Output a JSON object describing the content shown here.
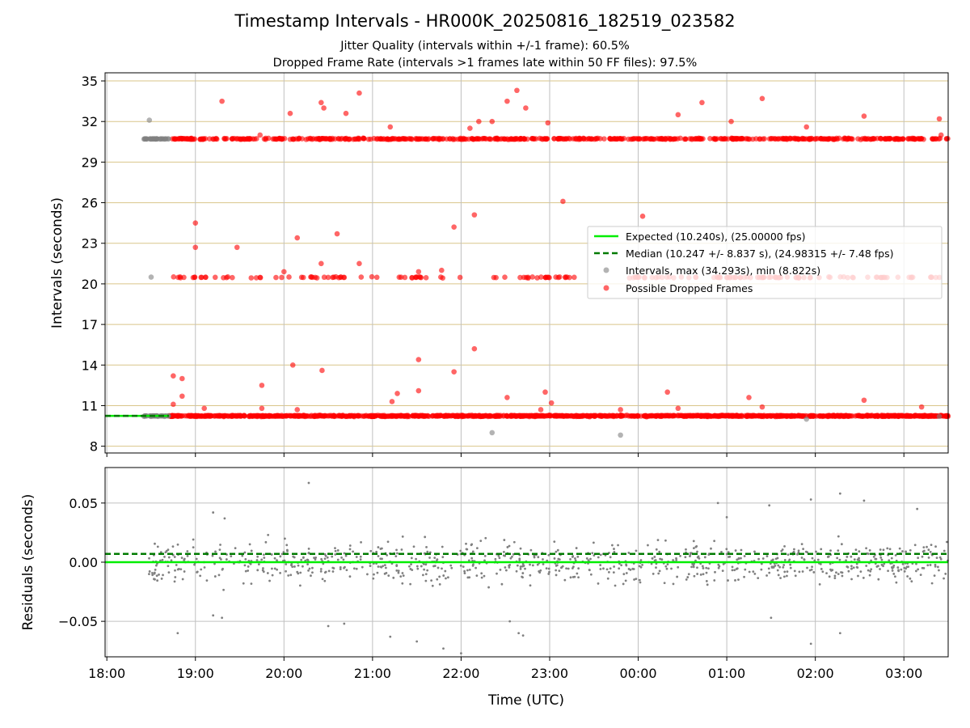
{
  "colors": {
    "expected": "#00ee00",
    "median": "#007a00",
    "intervals": "#808080",
    "dropped": "#ff0000",
    "hgrid_top": "#d9c58a",
    "vgrid": "#c0c0c0"
  },
  "chart_data": [
    {
      "type": "scatter",
      "title": "Timestamp Intervals - HR000K_20250816_182519_023582",
      "subtitle_1": "Jitter Quality (intervals within +/-1 frame): 60.5%",
      "subtitle_2": "Dropped Frame Rate (intervals >1 frames late within 50 FF files): 97.5%",
      "xlabel": "",
      "ylabel": "Intervals (seconds)",
      "xlim_hours": [
        17.98,
        27.5
      ],
      "ylim": [
        7.5,
        35.6
      ],
      "yticks": [
        8,
        11,
        14,
        17,
        20,
        23,
        26,
        29,
        32,
        35
      ],
      "ytick_labels": [
        "8",
        "11",
        "14",
        "17",
        "20",
        "23",
        "26",
        "29",
        "32",
        "35"
      ],
      "grid": true,
      "legend_position": "center-right",
      "legend": [
        "Expected (10.240s), (25.00000 fps)",
        "Median (10.247 +/- 8.837 s), (24.98315 +/- 7.48 fps)",
        "Intervals, max (34.293s), min (8.822s)",
        "Possible Dropped Frames"
      ],
      "expected_interval": 10.24,
      "median_interval": 10.247,
      "series": [
        {
          "name": "Intervals, max (34.293s), min (8.822s)",
          "points": [
            [
              18.42,
              30.7
            ],
            [
              18.45,
              30.7
            ],
            [
              18.5,
              30.7
            ],
            [
              18.55,
              30.7
            ],
            [
              18.6,
              30.7
            ],
            [
              18.65,
              30.7
            ],
            [
              18.48,
              32.1
            ],
            [
              18.5,
              20.5
            ],
            [
              18.42,
              10.2
            ],
            [
              18.5,
              10.2
            ],
            [
              18.58,
              10.2
            ],
            [
              18.65,
              10.2
            ],
            [
              22.35,
              9.0
            ],
            [
              23.8,
              8.822
            ],
            [
              25.9,
              10.0
            ],
            [
              27.4,
              10.2
            ]
          ]
        },
        {
          "name": "Possible Dropped Frames",
          "points": [
            [
              19.3,
              33.5
            ],
            [
              20.07,
              32.6
            ],
            [
              20.42,
              33.4
            ],
            [
              20.45,
              33.0
            ],
            [
              20.7,
              32.6
            ],
            [
              20.85,
              34.1
            ],
            [
              21.2,
              31.6
            ],
            [
              22.1,
              31.5
            ],
            [
              22.2,
              32.0
            ],
            [
              22.35,
              32.0
            ],
            [
              22.52,
              33.5
            ],
            [
              22.63,
              34.3
            ],
            [
              22.73,
              33.0
            ],
            [
              22.98,
              31.9
            ],
            [
              24.45,
              32.5
            ],
            [
              24.72,
              33.4
            ],
            [
              25.05,
              32.0
            ],
            [
              25.4,
              33.7
            ],
            [
              25.9,
              31.6
            ],
            [
              26.55,
              32.4
            ],
            [
              27.4,
              32.2
            ],
            [
              19.73,
              31.0
            ],
            [
              27.42,
              31.0
            ],
            [
              19.0,
              24.5
            ],
            [
              19.0,
              22.7
            ],
            [
              19.47,
              22.7
            ],
            [
              20.15,
              23.4
            ],
            [
              20.6,
              23.7
            ],
            [
              21.92,
              24.2
            ],
            [
              22.15,
              25.1
            ],
            [
              23.15,
              26.1
            ],
            [
              24.05,
              25.0
            ],
            [
              20.0,
              20.9
            ],
            [
              20.42,
              21.5
            ],
            [
              20.85,
              21.5
            ],
            [
              21.52,
              20.9
            ],
            [
              21.78,
              21.0
            ],
            [
              18.75,
              13.2
            ],
            [
              18.85,
              13.0
            ],
            [
              18.85,
              11.7
            ],
            [
              18.75,
              11.1
            ],
            [
              19.1,
              10.8
            ],
            [
              19.75,
              12.5
            ],
            [
              19.75,
              10.8
            ],
            [
              20.1,
              14.0
            ],
            [
              20.15,
              10.7
            ],
            [
              20.43,
              13.6
            ],
            [
              21.22,
              11.3
            ],
            [
              21.28,
              11.9
            ],
            [
              21.52,
              14.4
            ],
            [
              21.52,
              12.1
            ],
            [
              21.92,
              13.5
            ],
            [
              22.15,
              15.2
            ],
            [
              22.52,
              11.6
            ],
            [
              22.9,
              10.7
            ],
            [
              22.95,
              12.0
            ],
            [
              23.02,
              11.2
            ],
            [
              23.8,
              10.7
            ],
            [
              24.33,
              12.0
            ],
            [
              24.45,
              10.8
            ],
            [
              25.25,
              11.6
            ],
            [
              25.4,
              10.9
            ],
            [
              26.55,
              11.4
            ],
            [
              27.2,
              10.9
            ]
          ]
        }
      ],
      "bands": [
        {
          "name": "Possible Dropped Frames",
          "y": 10.24,
          "x_range": [
            18.7,
            27.5
          ]
        },
        {
          "name": "Possible Dropped Frames",
          "y": 20.48,
          "x_range": [
            18.7,
            27.5
          ]
        },
        {
          "name": "Possible Dropped Frames",
          "y": 30.72,
          "x_range": [
            18.7,
            27.5
          ]
        }
      ]
    },
    {
      "type": "scatter",
      "title": "",
      "xlabel": "Time (UTC)",
      "ylabel": "Residuals (seconds)",
      "xlim_hours": [
        17.98,
        27.5
      ],
      "ylim": [
        -0.08,
        0.08
      ],
      "yticks": [
        0.05,
        0.0,
        -0.05
      ],
      "ytick_labels": [
        "0.05",
        "0.00",
        "−0.05"
      ],
      "xticks_hours": [
        18,
        19,
        20,
        21,
        22,
        23,
        24,
        25,
        26,
        27
      ],
      "xtick_labels": [
        "18:00",
        "19:00",
        "20:00",
        "21:00",
        "22:00",
        "23:00",
        "00:00",
        "01:00",
        "02:00",
        "03:00"
      ],
      "grid": true,
      "expected_residual": 0.0,
      "median_residual": 0.007,
      "residual_spread": 0.012,
      "outliers": [
        [
          18.8,
          -0.06
        ],
        [
          19.2,
          0.042
        ],
        [
          19.33,
          0.037
        ],
        [
          19.2,
          -0.045
        ],
        [
          19.3,
          -0.047
        ],
        [
          20.28,
          0.067
        ],
        [
          20.5,
          -0.054
        ],
        [
          20.68,
          -0.052
        ],
        [
          21.2,
          -0.063
        ],
        [
          21.5,
          -0.067
        ],
        [
          21.8,
          -0.073
        ],
        [
          22.0,
          -0.077
        ],
        [
          22.55,
          -0.05
        ],
        [
          22.65,
          -0.06
        ],
        [
          22.7,
          -0.062
        ],
        [
          24.9,
          0.05
        ],
        [
          25.0,
          0.038
        ],
        [
          25.48,
          0.048
        ],
        [
          25.5,
          -0.047
        ],
        [
          25.95,
          0.053
        ],
        [
          25.95,
          -0.069
        ],
        [
          26.28,
          0.058
        ],
        [
          26.28,
          -0.06
        ],
        [
          26.55,
          0.052
        ],
        [
          27.15,
          0.045
        ]
      ]
    }
  ]
}
